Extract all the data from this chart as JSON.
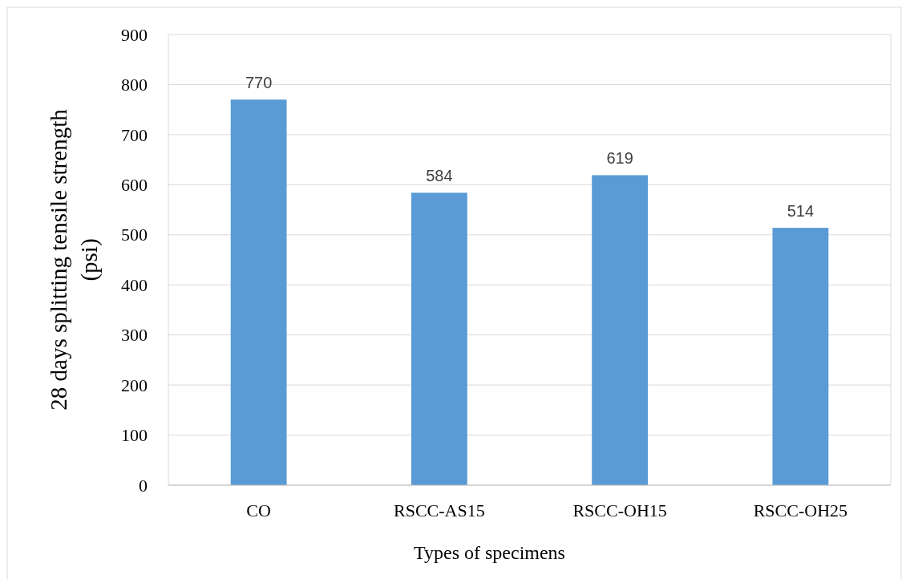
{
  "chart_data": {
    "type": "bar",
    "xlabel": "Types of specimens",
    "ylabel": "28 days splitting tensile strength (psi)",
    "categories": [
      "CO",
      "RSCC-AS15",
      "RSCC-OH15",
      "RSCC-OH25"
    ],
    "values": [
      770,
      584,
      619,
      514
    ],
    "color": "#5b9bd5",
    "ylim": [
      0,
      900
    ],
    "yticks": [
      0,
      100,
      200,
      300,
      400,
      500,
      600,
      700,
      800,
      900
    ],
    "grid": "y",
    "data_labels": true
  }
}
